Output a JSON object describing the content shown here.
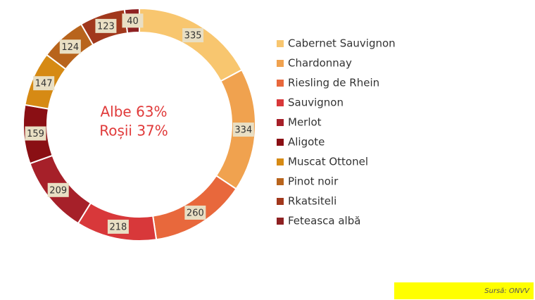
{
  "chart_data": {
    "type": "donut",
    "categories": [
      "Cabernet Sauvignon",
      "Chardonnay",
      "Riesling de Rhein",
      "Sauvignon",
      "Merlot",
      "Aligote",
      "Muscat Ottonel",
      "Pinot noir",
      "Rkatsiteli",
      "Feteasca albă"
    ],
    "values": [
      335,
      334,
      260,
      218,
      209,
      159,
      147,
      124,
      123,
      40
    ],
    "colors": [
      "#f8c66f",
      "#f0a24f",
      "#e8683c",
      "#d8383a",
      "#a62029",
      "#8a0f14",
      "#d68a14",
      "#b8641c",
      "#a1381c",
      "#8e2122"
    ],
    "annotations": [
      "Albe 63%",
      "Roșii 37%"
    ],
    "source": "Sursă: ONVV"
  }
}
